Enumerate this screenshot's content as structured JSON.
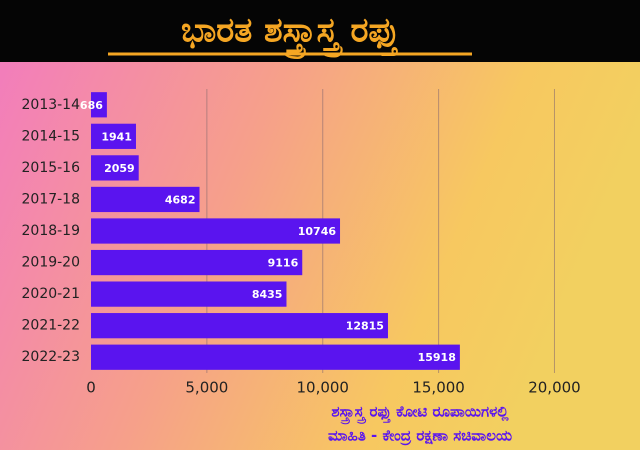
{
  "chart_data": {
    "type": "bar",
    "orientation": "horizontal",
    "title": "ಭಾರತ ಶಸ್ತ್ರಾಸ್ತ್ರ ರಫ್ತು",
    "subtitle": [
      "ಶಸ್ತ್ರಾಸ್ತ್ರ ರಫ್ತು ಕೋಟಿ ರೂಪಾಯಿಗಳಲ್ಲಿ",
      "ಮಾಹಿತಿ - ಕೇಂದ್ರ ರಕ್ಷಣಾ ಸಚಿವಾಲಯ"
    ],
    "categories": [
      "2013-14",
      "2014-15",
      "2015-16",
      "2017-18",
      "2018-19",
      "2019-20",
      "2020-21",
      "2021-22",
      "2022-23"
    ],
    "values": [
      686,
      1941,
      2059,
      4682,
      10746,
      9116,
      8435,
      12815,
      15918
    ],
    "color": "#5a14ef",
    "xlim": [
      0,
      23000
    ],
    "xticks": [
      0,
      {
        "value": 5000,
        "label": "5,000"
      },
      {
        "value": 10000,
        "label": "10,000"
      },
      {
        "value": 15000,
        "label": "15,000"
      },
      {
        "value": 20000,
        "label": "20,000"
      }
    ],
    "grid": true
  }
}
